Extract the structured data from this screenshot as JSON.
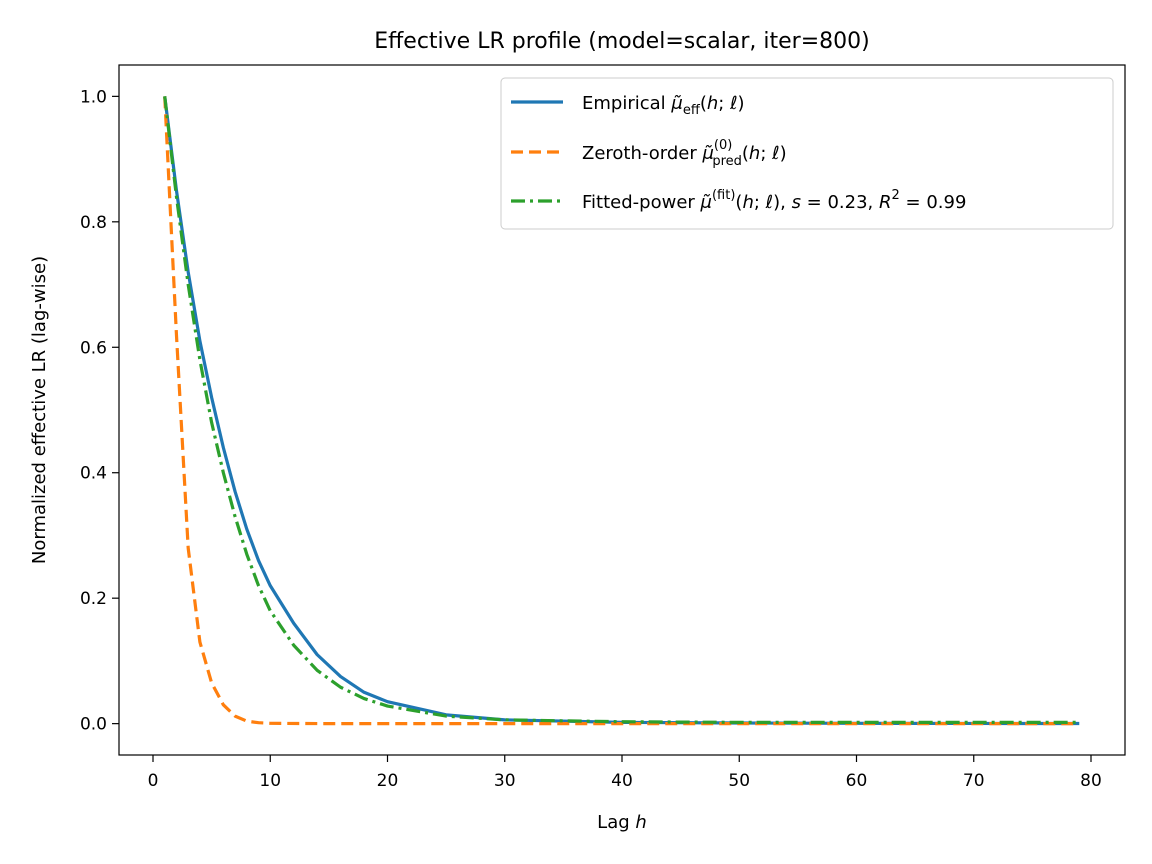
{
  "chart_data": {
    "type": "line",
    "title": "Effective LR profile (model=scalar, iter=800)",
    "xlabel": "Lag h",
    "ylabel": "Normalized effective LR (lag-wise)",
    "xlim": [
      -2.9,
      82.9
    ],
    "ylim": [
      -0.05,
      1.05
    ],
    "xticks": [
      0,
      10,
      20,
      30,
      40,
      50,
      60,
      70,
      80
    ],
    "yticks": [
      0.0,
      0.2,
      0.4,
      0.6,
      0.8,
      1.0
    ],
    "xtick_labels": [
      "0",
      "10",
      "20",
      "30",
      "40",
      "50",
      "60",
      "70",
      "80"
    ],
    "ytick_labels": [
      "0.0",
      "0.2",
      "0.4",
      "0.6",
      "0.8",
      "1.0"
    ],
    "grid": false,
    "legend_position": "top-right",
    "series": [
      {
        "name": "Empirical μ̃_eff(h;ℓ)",
        "legend_label": "Empirical μ̃eff(h; ℓ)",
        "color": "#1f77b4",
        "style": "solid",
        "x": [
          1,
          2,
          3,
          4,
          5,
          6,
          7,
          8,
          9,
          10,
          12,
          14,
          16,
          18,
          20,
          25,
          30,
          40,
          50,
          60,
          70,
          79
        ],
        "y": [
          1.0,
          0.85,
          0.72,
          0.61,
          0.52,
          0.44,
          0.37,
          0.31,
          0.26,
          0.22,
          0.16,
          0.11,
          0.075,
          0.05,
          0.035,
          0.014,
          0.006,
          0.002,
          0.001,
          0.0005,
          0.0003,
          0.0002
        ]
      },
      {
        "name": "Zeroth-order μ̃_pred^(0)(h;ℓ)",
        "legend_label": "Zeroth-order μ̃pred(0)(h; ℓ)",
        "color": "#ff7f0e",
        "style": "dashed",
        "x": [
          1,
          2,
          3,
          4,
          5,
          6,
          7,
          8,
          9,
          10,
          15,
          20,
          30,
          40,
          50,
          60,
          70,
          79
        ],
        "y": [
          1.0,
          0.62,
          0.28,
          0.13,
          0.065,
          0.03,
          0.012,
          0.004,
          0.0015,
          0.0005,
          0.0,
          0.0,
          0.0,
          0.0,
          0.0,
          0.0,
          0.0,
          0.0
        ]
      },
      {
        "name": "Fitted-power μ̃^(fit)(h;ℓ), s=0.23, R^2=0.99",
        "legend_label": "Fitted-power μ̃(fit)(h; ℓ), s = 0.23, R² = 0.99",
        "color": "#2ca02c",
        "style": "dashdot",
        "x": [
          1,
          2,
          3,
          4,
          5,
          6,
          7,
          8,
          9,
          10,
          12,
          14,
          16,
          18,
          20,
          25,
          30,
          40,
          50,
          60,
          70,
          79
        ],
        "y": [
          1.0,
          0.84,
          0.7,
          0.58,
          0.48,
          0.4,
          0.33,
          0.27,
          0.22,
          0.18,
          0.125,
          0.085,
          0.058,
          0.04,
          0.028,
          0.012,
          0.006,
          0.003,
          0.002,
          0.002,
          0.002,
          0.002
        ]
      }
    ]
  }
}
